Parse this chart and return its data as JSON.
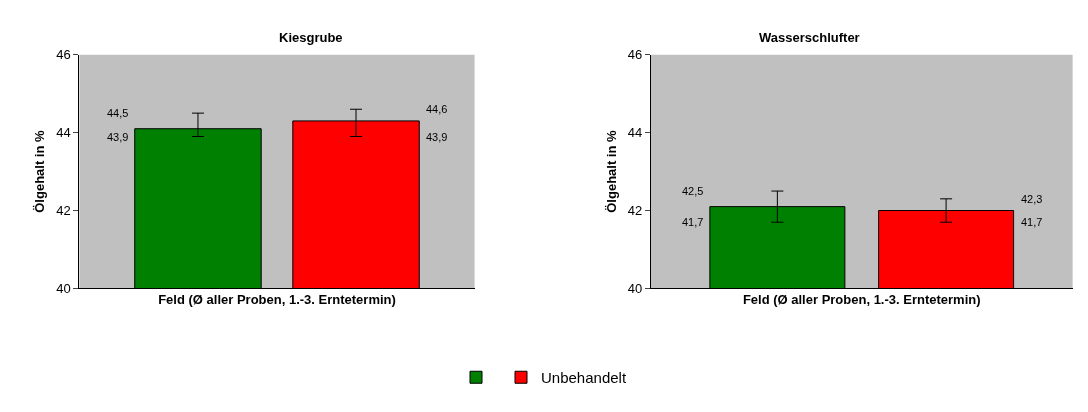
{
  "chart_data": [
    {
      "type": "bar",
      "title": "Kiesgrube",
      "xlabel": "Feld (Ø aller Proben, 1.-3. Erntetermin)",
      "ylabel": "Ölgehalt in %",
      "categories": [
        null
      ],
      "ylim": [
        40,
        46
      ],
      "yticks": [
        40,
        42,
        44,
        46
      ],
      "grid": false,
      "legend": "bottom",
      "series": [
        {
          "color": "#008000",
          "values": [
            44.1
          ],
          "errors": [
            [
              43.9,
              44.5
            ]
          ]
        },
        {
          "name": "Unbehandelt",
          "color": "#ff0000",
          "values": [
            44.3
          ],
          "errors": [
            [
              43.9,
              44.6
            ]
          ]
        }
      ],
      "annotations": [
        "44,5",
        "43,9",
        "44,6",
        "43,9"
      ]
    },
    {
      "type": "bar",
      "title": "Wasserschlufter",
      "xlabel": "Feld (Ø aller Proben, 1.-3. Erntetermin)",
      "ylabel": "Ölgehalt in %",
      "categories": [
        null
      ],
      "ylim": [
        40,
        46
      ],
      "yticks": [
        40,
        42,
        44,
        46
      ],
      "grid": false,
      "legend": "bottom",
      "series": [
        {
          "color": "#008000",
          "values": [
            42.1
          ],
          "errors": [
            [
              41.7,
              42.5
            ]
          ]
        },
        {
          "name": "Unbehandelt",
          "color": "#ff0000",
          "values": [
            42.0
          ],
          "errors": [
            [
              41.7,
              42.3
            ]
          ]
        }
      ],
      "annotations": [
        "42,5",
        "41,7",
        "42,3",
        "41,7"
      ]
    }
  ]
}
